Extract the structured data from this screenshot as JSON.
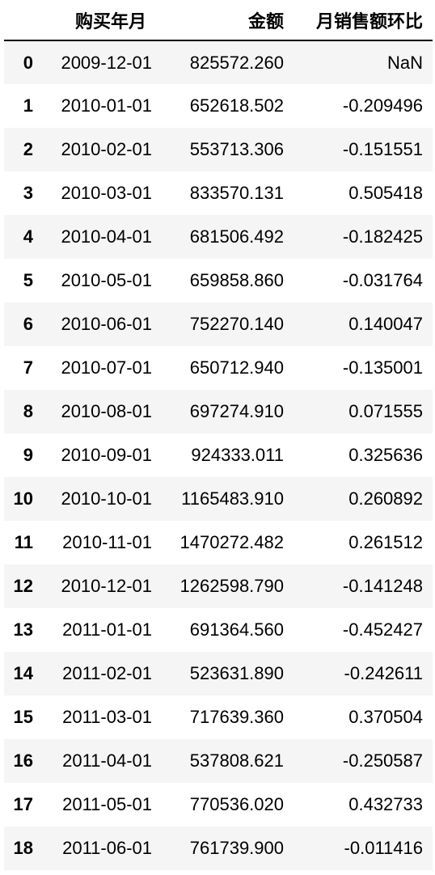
{
  "table": {
    "columns": [
      "购买年月",
      "金额",
      "月销售额环比"
    ],
    "rows": [
      {
        "index": "0",
        "date": "2009-12-01",
        "amount": "825572.260",
        "ratio": "NaN"
      },
      {
        "index": "1",
        "date": "2010-01-01",
        "amount": "652618.502",
        "ratio": "-0.209496"
      },
      {
        "index": "2",
        "date": "2010-02-01",
        "amount": "553713.306",
        "ratio": "-0.151551"
      },
      {
        "index": "3",
        "date": "2010-03-01",
        "amount": "833570.131",
        "ratio": "0.505418"
      },
      {
        "index": "4",
        "date": "2010-04-01",
        "amount": "681506.492",
        "ratio": "-0.182425"
      },
      {
        "index": "5",
        "date": "2010-05-01",
        "amount": "659858.860",
        "ratio": "-0.031764"
      },
      {
        "index": "6",
        "date": "2010-06-01",
        "amount": "752270.140",
        "ratio": "0.140047"
      },
      {
        "index": "7",
        "date": "2010-07-01",
        "amount": "650712.940",
        "ratio": "-0.135001"
      },
      {
        "index": "8",
        "date": "2010-08-01",
        "amount": "697274.910",
        "ratio": "0.071555"
      },
      {
        "index": "9",
        "date": "2010-09-01",
        "amount": "924333.011",
        "ratio": "0.325636"
      },
      {
        "index": "10",
        "date": "2010-10-01",
        "amount": "1165483.910",
        "ratio": "0.260892"
      },
      {
        "index": "11",
        "date": "2010-11-01",
        "amount": "1470272.482",
        "ratio": "0.261512"
      },
      {
        "index": "12",
        "date": "2010-12-01",
        "amount": "1262598.790",
        "ratio": "-0.141248"
      },
      {
        "index": "13",
        "date": "2011-01-01",
        "amount": "691364.560",
        "ratio": "-0.452427"
      },
      {
        "index": "14",
        "date": "2011-02-01",
        "amount": "523631.890",
        "ratio": "-0.242611"
      },
      {
        "index": "15",
        "date": "2011-03-01",
        "amount": "717639.360",
        "ratio": "0.370504"
      },
      {
        "index": "16",
        "date": "2011-04-01",
        "amount": "537808.621",
        "ratio": "-0.250587"
      },
      {
        "index": "17",
        "date": "2011-05-01",
        "amount": "770536.020",
        "ratio": "0.432733"
      },
      {
        "index": "18",
        "date": "2011-06-01",
        "amount": "761739.900",
        "ratio": "-0.011416"
      }
    ]
  },
  "colors": {
    "stripe": "#f5f5f5",
    "background": "#ffffff",
    "text": "#000000"
  }
}
